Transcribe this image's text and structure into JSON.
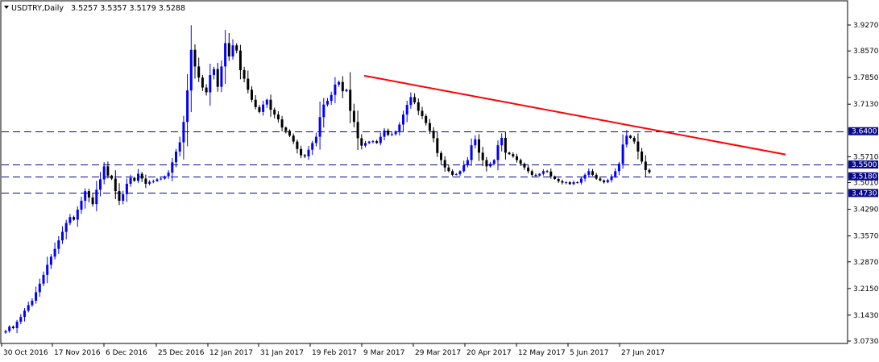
{
  "header": {
    "symbol_period": "USDTRY,Daily",
    "ohlc": "3.5257 3.5357 3.5179 3.5288"
  },
  "colors": {
    "background": "#ffffff",
    "frame": "#000000",
    "bull_candle": "#0000ff",
    "bear_candle": "#000000",
    "level_line": "#0a0a8c",
    "trendline": "#ff0000",
    "level_badge_bg": "#0a0a8c",
    "level_badge_text": "#ffffff"
  },
  "chart_data": {
    "type": "candlestick",
    "title": "USDTRY,Daily",
    "ylim": [
      3.073,
      3.97
    ],
    "y_ticks": [
      "3.9270",
      "3.8570",
      "3.7850",
      "3.7130",
      "3.6400",
      "3.5710",
      "3.5500",
      "3.5180",
      "3.5010",
      "3.4730",
      "3.4290",
      "3.3570",
      "3.2870",
      "3.2150",
      "3.1430",
      "3.0730"
    ],
    "x_labels": [
      "30 Oct 2016",
      "17 Nov 2016",
      "6 Dec 2016",
      "25 Dec 2016",
      "12 Jan 2017",
      "31 Jan 2017",
      "19 Feb 2017",
      "9 Mar 2017",
      "29 Mar 2017",
      "20 Apr 2017",
      "12 May 2017",
      "5 Jun 2017",
      "27 Jun 2017"
    ],
    "horizontal_levels": [
      {
        "label": "3.6400",
        "value": 3.64
      },
      {
        "label": "3.5500",
        "value": 3.55
      },
      {
        "label": "3.5180",
        "value": 3.518
      },
      {
        "label": "3.4730",
        "value": 3.473
      }
    ],
    "trendline": {
      "start": {
        "date": "9 Mar 2017",
        "price": 3.79
      },
      "end": {
        "date": "Aug 2017",
        "price": 3.577
      }
    },
    "current_price": 3.5288,
    "closes": [
      3.1,
      3.112,
      3.108,
      3.125,
      3.138,
      3.155,
      3.17,
      3.182,
      3.205,
      3.228,
      3.252,
      3.279,
      3.301,
      3.322,
      3.345,
      3.368,
      3.392,
      3.408,
      3.401,
      3.428,
      3.452,
      3.478,
      3.461,
      3.443,
      3.482,
      3.51,
      3.545,
      3.52,
      3.512,
      3.478,
      3.452,
      3.47,
      3.498,
      3.514,
      3.506,
      3.525,
      3.512,
      3.498,
      3.503,
      3.505,
      3.51,
      3.512,
      3.518,
      3.528,
      3.556,
      3.585,
      3.61,
      3.665,
      3.75,
      3.86,
      3.815,
      3.785,
      3.758,
      3.745,
      3.792,
      3.808,
      3.76,
      3.815,
      3.878,
      3.842,
      3.872,
      3.858,
      3.805,
      3.782,
      3.752,
      3.725,
      3.705,
      3.692,
      3.712,
      3.725,
      3.698,
      3.685,
      3.672,
      3.65,
      3.641,
      3.628,
      3.612,
      3.592,
      3.575,
      3.572,
      3.59,
      3.608,
      3.625,
      3.678,
      3.712,
      3.722,
      3.738,
      3.766,
      3.773,
      3.748,
      3.752,
      3.695,
      3.665,
      3.621,
      3.601,
      3.608,
      3.612,
      3.613,
      3.608,
      3.625,
      3.642,
      3.63,
      3.632,
      3.64,
      3.658,
      3.685,
      3.711,
      3.732,
      3.718,
      3.695,
      3.681,
      3.662,
      3.641,
      3.621,
      3.581,
      3.562,
      3.542,
      3.532,
      3.522,
      3.524,
      3.532,
      3.548,
      3.562,
      3.602,
      3.618,
      3.582,
      3.562,
      3.545,
      3.552,
      3.562,
      3.602,
      3.622,
      3.582,
      3.578,
      3.572,
      3.562,
      3.552,
      3.542,
      3.532,
      3.522,
      3.52,
      3.525,
      3.532,
      3.531,
      3.518,
      3.511,
      3.505,
      3.501,
      3.502,
      3.497,
      3.502,
      3.501,
      3.512,
      3.522,
      3.532,
      3.522,
      3.512,
      3.507,
      3.502,
      3.508,
      3.518,
      3.532,
      3.552,
      3.604,
      3.628,
      3.622,
      3.612,
      3.585,
      3.558,
      3.535,
      3.529
    ]
  }
}
